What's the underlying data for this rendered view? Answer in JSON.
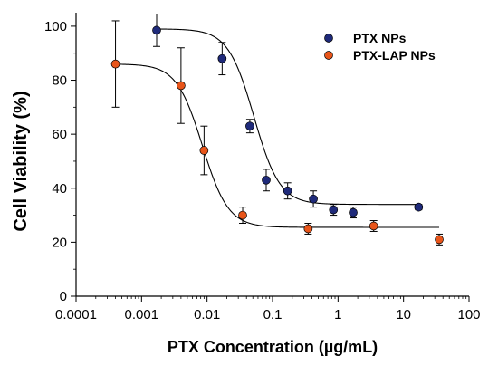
{
  "chart_data": {
    "type": "scatter",
    "xlabel": "PTX Concentration (µg/mL)",
    "ylabel": "Cell Viability (%)",
    "x_scale": "log",
    "xlim": [
      0.0001,
      100
    ],
    "ylim": [
      0,
      105
    ],
    "x_ticks": [
      0.0001,
      0.001,
      0.01,
      0.1,
      1,
      10,
      100
    ],
    "x_tick_labels": [
      "0.0001",
      "0.001",
      "0.01",
      "0.1",
      "1",
      "10",
      "100"
    ],
    "y_ticks": [
      0,
      20,
      40,
      60,
      80,
      100
    ],
    "y_tick_labels": [
      "0",
      "20",
      "40",
      "60",
      "80",
      "100"
    ],
    "grid": false,
    "legend_position": "top-right",
    "series": [
      {
        "name": "PTX NPs",
        "color": "#1f2a7a",
        "points": [
          {
            "x": 0.0017,
            "y": 98.5,
            "err": 6
          },
          {
            "x": 0.017,
            "y": 88,
            "err": 6
          },
          {
            "x": 0.045,
            "y": 63,
            "err": 2.5
          },
          {
            "x": 0.08,
            "y": 43,
            "err": 4
          },
          {
            "x": 0.17,
            "y": 39,
            "err": 3
          },
          {
            "x": 0.42,
            "y": 36,
            "err": 3
          },
          {
            "x": 0.85,
            "y": 32,
            "err": 2
          },
          {
            "x": 1.7,
            "y": 31,
            "err": 2
          },
          {
            "x": 17,
            "y": 33,
            "err": 1
          }
        ],
        "fit": {
          "top": 99,
          "bottom": 34,
          "ec50": 0.052,
          "hill": 2.2
        }
      },
      {
        "name": "PTX-LAP NPs",
        "color": "#e8551a",
        "points": [
          {
            "x": 0.0004,
            "y": 86,
            "err": 16
          },
          {
            "x": 0.004,
            "y": 78,
            "err": 14
          },
          {
            "x": 0.009,
            "y": 54,
            "err": 9
          },
          {
            "x": 0.035,
            "y": 30,
            "err": 3
          },
          {
            "x": 0.35,
            "y": 25,
            "err": 2
          },
          {
            "x": 3.5,
            "y": 26,
            "err": 2
          },
          {
            "x": 35,
            "y": 21,
            "err": 2
          }
        ],
        "fit": {
          "top": 86,
          "bottom": 25.5,
          "ec50": 0.0085,
          "hill": 2.2
        }
      }
    ]
  }
}
